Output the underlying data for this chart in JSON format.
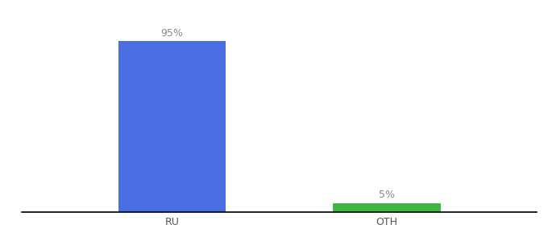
{
  "categories": [
    "RU",
    "OTH"
  ],
  "values": [
    95,
    5
  ],
  "bar_colors": [
    "#4a6fe3",
    "#3cb843"
  ],
  "label_texts": [
    "95%",
    "5%"
  ],
  "ylim": [
    0,
    107
  ],
  "bar_width": 0.5,
  "background_color": "#ffffff",
  "label_fontsize": 9,
  "tick_fontsize": 9,
  "label_color": "#888888",
  "x_positions": [
    0,
    1
  ],
  "xlim": [
    -0.7,
    1.7
  ]
}
